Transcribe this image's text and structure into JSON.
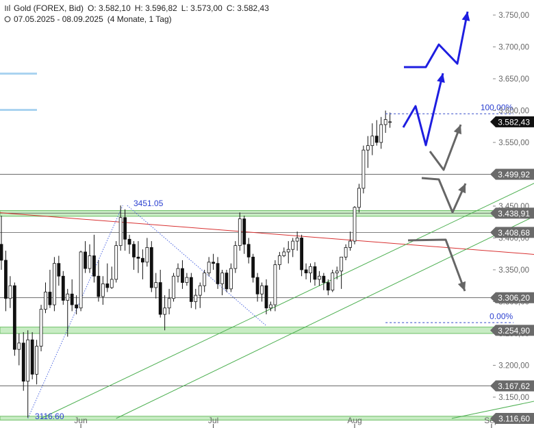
{
  "header": {
    "instrument": "Gold (FOREX, Bid)",
    "open": "O: 3.582,10",
    "high": "H: 3.596,82",
    "low": "L: 3.573,00",
    "close": "C: 3.582,43",
    "range": "07.05.2025 - 08.09.2025",
    "period": "(4 Monate, 1 Tag)"
  },
  "chart_data": {
    "type": "candlestick",
    "ylim": [
      3116.6,
      3750
    ],
    "y_ticks": [
      {
        "v": 3750,
        "label": "3.750,00"
      },
      {
        "v": 3700,
        "label": "3.700,00"
      },
      {
        "v": 3650,
        "label": "3.650,00"
      },
      {
        "v": 3600,
        "label": "3.600,00"
      },
      {
        "v": 3550,
        "label": "3.550,00"
      },
      {
        "v": 3500,
        "label": "3.500,00"
      },
      {
        "v": 3450,
        "label": "3.450,00"
      },
      {
        "v": 3400,
        "label": "3.400,00"
      },
      {
        "v": 3350,
        "label": "3.350,00"
      },
      {
        "v": 3300,
        "label": "3.300,00"
      },
      {
        "v": 3250,
        "label": "3.250,00"
      },
      {
        "v": 3200,
        "label": "3.200,00"
      },
      {
        "v": 3150,
        "label": "3.150,00"
      }
    ],
    "x_ticks": [
      {
        "day": 18,
        "label": "Jun"
      },
      {
        "day": 48,
        "label": "Jul"
      },
      {
        "day": 80,
        "label": "Aug"
      },
      {
        "day": 111,
        "label": "Sep"
      }
    ],
    "price_labels": [
      {
        "v": 3582.43,
        "label": "3.582,43",
        "style": "dark"
      },
      {
        "v": 3499.92,
        "label": "3.499,92",
        "style": "grey"
      },
      {
        "v": 3438.91,
        "label": "3.438,91",
        "style": "grey"
      },
      {
        "v": 3408.68,
        "label": "3.408,68",
        "style": "grey"
      },
      {
        "v": 3306.2,
        "label": "3.306,20",
        "style": "grey"
      },
      {
        "v": 3254.9,
        "label": "3.254,90",
        "style": "grey"
      },
      {
        "v": 3167.62,
        "label": "3.167,62",
        "style": "grey"
      },
      {
        "v": 3116.6,
        "label": "3.116,60",
        "style": "grey"
      }
    ],
    "horizontal_lines": [
      3499.92,
      3438.91,
      3408.68,
      3306.2,
      3167.62
    ],
    "support_zones": [
      {
        "low": 3250,
        "high": 3260
      },
      {
        "low": 3434,
        "high": 3443
      },
      {
        "low": 3114,
        "high": 3120
      }
    ],
    "fib": {
      "high": {
        "v": 3595,
        "label": "100.00%",
        "day_from": 87,
        "day_to": 116
      },
      "low": {
        "v": 3267,
        "label": "0.00%",
        "day_from": 87,
        "day_to": 116
      }
    },
    "annotations": [
      {
        "label": "3451.05",
        "v": 3451.05,
        "day": 35
      },
      {
        "label": "3116.60",
        "v": 3116.6,
        "day": 1
      }
    ],
    "days": [
      "05-07",
      "05-08",
      "05-09",
      "05-12",
      "05-13",
      "05-14",
      "05-15",
      "05-16",
      "05-19",
      "05-20",
      "05-21",
      "05-22",
      "05-23",
      "05-26",
      "05-27",
      "05-28",
      "05-29",
      "05-30",
      "06-02",
      "06-03",
      "06-04",
      "06-05",
      "06-06",
      "06-09",
      "06-10",
      "06-11",
      "06-12",
      "06-13",
      "06-16",
      "06-17",
      "06-18",
      "06-19",
      "06-20",
      "06-23",
      "06-24",
      "06-25",
      "06-26",
      "06-27",
      "06-30",
      "07-01",
      "07-02",
      "07-03",
      "07-04",
      "07-07",
      "07-08",
      "07-09",
      "07-10",
      "07-11",
      "07-14",
      "07-15",
      "07-16",
      "07-17",
      "07-18",
      "07-21",
      "07-22",
      "07-23",
      "07-24",
      "07-25",
      "07-28",
      "07-29",
      "07-30",
      "07-31",
      "08-01",
      "08-04",
      "08-05",
      "08-06",
      "08-07",
      "08-08",
      "08-11",
      "08-12",
      "08-13",
      "08-14",
      "08-15",
      "08-18",
      "08-19",
      "08-20",
      "08-21",
      "08-22",
      "08-25",
      "08-26",
      "08-27",
      "08-28",
      "08-29",
      "09-01",
      "09-02",
      "09-03",
      "09-04",
      "09-05",
      "09-08"
    ],
    "ohlc": [
      [
        3390,
        3435,
        3350,
        3365
      ],
      [
        3365,
        3380,
        3285,
        3305
      ],
      [
        3305,
        3340,
        3290,
        3325
      ],
      [
        3325,
        3330,
        3215,
        3225
      ],
      [
        3225,
        3250,
        3200,
        3235
      ],
      [
        3235,
        3252,
        3160,
        3175
      ],
      [
        3175,
        3255,
        3118,
        3240
      ],
      [
        3240,
        3252,
        3178,
        3186
      ],
      [
        3186,
        3240,
        3170,
        3230
      ],
      [
        3230,
        3295,
        3222,
        3288
      ],
      [
        3288,
        3330,
        3282,
        3315
      ],
      [
        3315,
        3350,
        3290,
        3295
      ],
      [
        3295,
        3370,
        3285,
        3360
      ],
      [
        3360,
        3372,
        3325,
        3340
      ],
      [
        3340,
        3348,
        3295,
        3302
      ],
      [
        3302,
        3320,
        3245,
        3312
      ],
      [
        3312,
        3335,
        3285,
        3295
      ],
      [
        3295,
        3310,
        3280,
        3290
      ],
      [
        3290,
        3380,
        3285,
        3378
      ],
      [
        3378,
        3395,
        3345,
        3352
      ],
      [
        3352,
        3390,
        3345,
        3372
      ],
      [
        3372,
        3405,
        3330,
        3340
      ],
      [
        3340,
        3365,
        3300,
        3308
      ],
      [
        3308,
        3340,
        3295,
        3328
      ],
      [
        3328,
        3360,
        3315,
        3322
      ],
      [
        3322,
        3355,
        3320,
        3335
      ],
      [
        3335,
        3395,
        3330,
        3388
      ],
      [
        3388,
        3451,
        3380,
        3432
      ],
      [
        3432,
        3445,
        3380,
        3398
      ],
      [
        3398,
        3405,
        3375,
        3390
      ],
      [
        3390,
        3395,
        3350,
        3370
      ],
      [
        3370,
        3395,
        3345,
        3368
      ],
      [
        3368,
        3382,
        3335,
        3362
      ],
      [
        3362,
        3400,
        3355,
        3385
      ],
      [
        3385,
        3395,
        3315,
        3322
      ],
      [
        3322,
        3345,
        3305,
        3330
      ],
      [
        3330,
        3350,
        3275,
        3280
      ],
      [
        3280,
        3310,
        3255,
        3290
      ],
      [
        3290,
        3320,
        3280,
        3305
      ],
      [
        3305,
        3345,
        3300,
        3340
      ],
      [
        3340,
        3360,
        3330,
        3352
      ],
      [
        3352,
        3365,
        3320,
        3330
      ],
      [
        3330,
        3345,
        3325,
        3338
      ],
      [
        3338,
        3345,
        3290,
        3300
      ],
      [
        3300,
        3320,
        3288,
        3310
      ],
      [
        3310,
        3330,
        3290,
        3325
      ],
      [
        3325,
        3350,
        3315,
        3345
      ],
      [
        3345,
        3370,
        3340,
        3362
      ],
      [
        3362,
        3375,
        3350,
        3360
      ],
      [
        3360,
        3370,
        3320,
        3328
      ],
      [
        3328,
        3350,
        3310,
        3345
      ],
      [
        3345,
        3350,
        3315,
        3320
      ],
      [
        3320,
        3360,
        3315,
        3352
      ],
      [
        3352,
        3395,
        3345,
        3388
      ],
      [
        3388,
        3440,
        3380,
        3430
      ],
      [
        3430,
        3435,
        3375,
        3390
      ],
      [
        3390,
        3400,
        3360,
        3370
      ],
      [
        3370,
        3375,
        3330,
        3338
      ],
      [
        3338,
        3345,
        3300,
        3312
      ],
      [
        3312,
        3330,
        3300,
        3325
      ],
      [
        3325,
        3335,
        3280,
        3290
      ],
      [
        3290,
        3300,
        3285,
        3295
      ],
      [
        3295,
        3365,
        3285,
        3358
      ],
      [
        3358,
        3378,
        3350,
        3372
      ],
      [
        3372,
        3385,
        3370,
        3378
      ],
      [
        3378,
        3395,
        3360,
        3382
      ],
      [
        3382,
        3400,
        3370,
        3395
      ],
      [
        3395,
        3410,
        3380,
        3400
      ],
      [
        3400,
        3405,
        3340,
        3350
      ],
      [
        3350,
        3360,
        3335,
        3345
      ],
      [
        3345,
        3360,
        3330,
        3355
      ],
      [
        3355,
        3362,
        3325,
        3335
      ],
      [
        3335,
        3348,
        3325,
        3340
      ],
      [
        3340,
        3345,
        3318,
        3330
      ],
      [
        3330,
        3335,
        3310,
        3318
      ],
      [
        3318,
        3350,
        3315,
        3345
      ],
      [
        3345,
        3355,
        3335,
        3348
      ],
      [
        3348,
        3365,
        3320,
        3370
      ],
      [
        3370,
        3390,
        3365,
        3385
      ],
      [
        3385,
        3410,
        3380,
        3395
      ],
      [
        3395,
        3450,
        3390,
        3448
      ],
      [
        3448,
        3485,
        3440,
        3478
      ],
      [
        3478,
        3545,
        3470,
        3538
      ],
      [
        3538,
        3560,
        3510,
        3545
      ],
      [
        3545,
        3580,
        3530,
        3560
      ],
      [
        3560,
        3585,
        3545,
        3550
      ],
      [
        3550,
        3590,
        3540,
        3578
      ],
      [
        3578,
        3600,
        3565,
        3586
      ],
      [
        3582.1,
        3596.82,
        3573.0,
        3582.43
      ]
    ]
  }
}
